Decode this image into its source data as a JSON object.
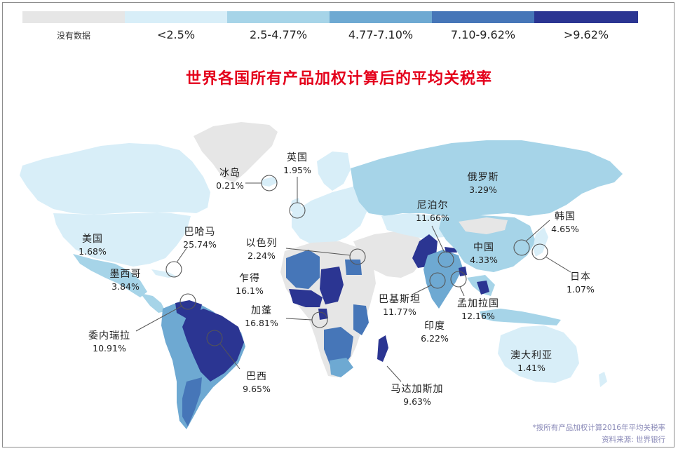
{
  "legend": {
    "items": [
      {
        "label": "没有数据",
        "color": "#e6e6e6"
      },
      {
        "label": "<2.5%",
        "color": "#d8eef8"
      },
      {
        "label": "2.5-4.77%",
        "color": "#a6d4e8"
      },
      {
        "label": "4.77-7.10%",
        "color": "#6ea9d2"
      },
      {
        "label": "7.10-9.62%",
        "color": "#4676b8"
      },
      {
        "label": ">9.62%",
        "color": "#2b3592"
      }
    ]
  },
  "title": "世界各国所有产品加权计算后的平均关税率",
  "countries": [
    {
      "key": "iceland",
      "name": "冰岛",
      "value": "0.21%"
    },
    {
      "key": "uk",
      "name": "英国",
      "value": "1.95%"
    },
    {
      "key": "russia",
      "name": "俄罗斯",
      "value": "3.29%"
    },
    {
      "key": "usa",
      "name": "美国",
      "value": "1.68%"
    },
    {
      "key": "bahamas",
      "name": "巴哈马",
      "value": "25.74%"
    },
    {
      "key": "israel",
      "name": "以色列",
      "value": "2.24%"
    },
    {
      "key": "nepal",
      "name": "尼泊尔",
      "value": "11.66%"
    },
    {
      "key": "korea",
      "name": "韩国",
      "value": "4.65%"
    },
    {
      "key": "mexico",
      "name": "墨西哥",
      "value": "3.84%"
    },
    {
      "key": "chad",
      "name": "乍得",
      "value": "16.1%"
    },
    {
      "key": "china",
      "name": "中国",
      "value": "4.33%"
    },
    {
      "key": "japan",
      "name": "日本",
      "value": "1.07%"
    },
    {
      "key": "pakistan",
      "name": "巴基斯坦",
      "value": "11.77%"
    },
    {
      "key": "bangladesh",
      "name": "孟加拉国",
      "value": "12.16%"
    },
    {
      "key": "gabon",
      "name": "加蓬",
      "value": "16.81%"
    },
    {
      "key": "venezuela",
      "name": "委内瑞拉",
      "value": "10.91%"
    },
    {
      "key": "india",
      "name": "印度",
      "value": "6.22%"
    },
    {
      "key": "australia",
      "name": "澳大利亚",
      "value": "1.41%"
    },
    {
      "key": "brazil",
      "name": "巴西",
      "value": "9.65%"
    },
    {
      "key": "madagascar",
      "name": "马达加斯加",
      "value": "9.63%"
    }
  ],
  "footnote": {
    "line1": "*按所有产品加权计算2016年平均关税率",
    "line2": "资料来源: 世界银行"
  }
}
